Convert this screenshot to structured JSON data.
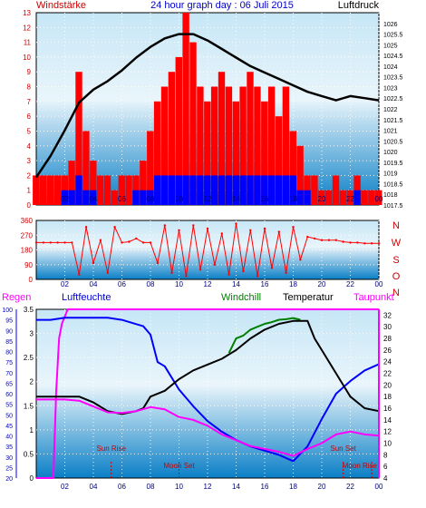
{
  "header": {
    "left_label": "Windstärke",
    "title": "24 hour graph day : 06 Juli 2015",
    "right_label": "Luftdruck"
  },
  "colors": {
    "plot_top": "#c6e6f6",
    "plot_mid": "#e9f5fb",
    "plot_bottom": "#0a7fc6",
    "wind_gust": "#ff0000",
    "wind_avg": "#0000ff",
    "pressure": "#000000",
    "direction": "#ff0000",
    "regen": "#ff00ff",
    "luftfeuchte": "#0000ff",
    "windchill": "#008000",
    "temperatur": "#000000",
    "taupunkt": "#ff00ff",
    "sun_moon": "#cc0000",
    "axis_label_red": "#cc0000",
    "axis_label_blue": "#0000cc"
  },
  "chart_data": [
    {
      "type": "bar",
      "x_ticks": [
        "02",
        "04",
        "06",
        "08",
        "10",
        "12",
        "14",
        "16",
        "18",
        "20",
        "22",
        "00"
      ],
      "left_axis": {
        "ylim": [
          0,
          13
        ],
        "ticks": [
          0,
          1,
          2,
          3,
          4,
          5,
          6,
          7,
          8,
          9,
          10,
          11,
          12,
          13
        ]
      },
      "right_axis": {
        "ylim": [
          1017.5,
          1026.5
        ],
        "ticks": [
          "1017.5",
          "1018",
          "1018.5",
          "1019",
          "1019.5",
          "1020",
          "1020.5",
          "1021",
          "1021.5",
          "1022",
          "1022.5",
          "1023",
          "1023.5",
          "1024",
          "1024.5",
          "1025",
          "1025.5",
          "1026"
        ]
      },
      "series": [
        {
          "name": "Windstärke",
          "axis": "left",
          "kind": "gust",
          "x": [
            0,
            0.5,
            1,
            1.5,
            2,
            2.5,
            3,
            3.5,
            4,
            4.5,
            5,
            5.5,
            6,
            6.5,
            7,
            7.5,
            8,
            8.5,
            9,
            9.5,
            10,
            10.5,
            11,
            11.5,
            12,
            12.5,
            13,
            13.5,
            14,
            14.5,
            15,
            15.5,
            16,
            16.5,
            17,
            17.5,
            18,
            18.5,
            19,
            19.5,
            20,
            20.5,
            21,
            21.5,
            22,
            22.5,
            23,
            23.5,
            24
          ],
          "values": [
            2,
            2,
            2,
            2,
            2,
            3,
            9,
            5,
            3,
            2,
            2,
            1,
            2,
            2,
            2,
            3,
            5,
            7,
            8,
            9,
            10,
            13,
            11,
            8,
            7,
            8,
            9,
            8,
            7,
            8,
            9,
            8,
            7,
            8,
            6,
            8,
            5,
            4,
            2,
            2,
            1,
            1,
            2,
            1,
            1,
            2,
            1,
            1,
            1
          ]
        },
        {
          "name": "Windstärke Mittel",
          "axis": "left",
          "kind": "average",
          "x": [
            0,
            0.5,
            1,
            1.5,
            2,
            2.5,
            3,
            3.5,
            4,
            4.5,
            5,
            5.5,
            6,
            6.5,
            7,
            7.5,
            8,
            8.5,
            9,
            9.5,
            10,
            10.5,
            11,
            11.5,
            12,
            12.5,
            13,
            13.5,
            14,
            14.5,
            15,
            15.5,
            16,
            16.5,
            17,
            17.5,
            18,
            18.5,
            19,
            19.5,
            20,
            20.5,
            21,
            21.5,
            22,
            22.5,
            23,
            23.5,
            24
          ],
          "values": [
            0,
            0,
            0,
            0,
            1,
            1,
            2,
            1,
            1,
            0,
            0,
            0,
            0,
            0,
            1,
            1,
            1,
            2,
            2,
            2,
            2,
            2,
            2,
            2,
            2,
            2,
            2,
            2,
            2,
            2,
            2,
            2,
            2,
            2,
            2,
            2,
            2,
            1,
            1,
            0,
            0,
            0,
            0,
            0,
            0,
            1,
            0,
            0,
            0
          ]
        },
        {
          "name": "Luftdruck",
          "axis": "right",
          "kind": "line",
          "x": [
            0,
            1,
            2,
            3,
            4,
            5,
            6,
            7,
            8,
            9,
            10,
            11,
            12,
            13,
            14,
            15,
            16,
            17,
            18,
            19,
            20,
            21,
            22,
            23,
            24
          ],
          "values": [
            1018.8,
            1019.8,
            1021.0,
            1022.3,
            1022.9,
            1023.3,
            1023.8,
            1024.4,
            1024.9,
            1025.3,
            1025.5,
            1025.5,
            1025.2,
            1024.8,
            1024.4,
            1024.0,
            1023.7,
            1023.4,
            1023.1,
            1022.8,
            1022.6,
            1022.4,
            1022.6,
            1022.5,
            1022.4
          ]
        }
      ]
    },
    {
      "type": "scatter",
      "x_ticks": [
        "02",
        "04",
        "06",
        "08",
        "10",
        "12",
        "14",
        "16",
        "18",
        "20",
        "22",
        "00"
      ],
      "left_axis": {
        "ylim": [
          0,
          360
        ],
        "ticks": [
          0,
          90,
          180,
          270,
          360
        ]
      },
      "right_axis_labels": [
        "N",
        "W",
        "S",
        "O",
        "N"
      ],
      "series": [
        {
          "name": "Windrichtung",
          "x": [
            0,
            0.5,
            1,
            1.5,
            2,
            2.5,
            3,
            3.5,
            4,
            4.5,
            5,
            5.5,
            6,
            6.5,
            7,
            7.5,
            8,
            8.5,
            9,
            9.5,
            10,
            10.5,
            11,
            11.5,
            12,
            12.5,
            13,
            13.5,
            14,
            14.5,
            15,
            15.5,
            16,
            16.5,
            17,
            17.5,
            18,
            18.5,
            19,
            19.5,
            20,
            20.5,
            21,
            21.5,
            22,
            22.5,
            23,
            23.5,
            24
          ],
          "values": [
            225,
            225,
            225,
            225,
            225,
            225,
            30,
            320,
            100,
            240,
            40,
            320,
            225,
            230,
            250,
            225,
            225,
            100,
            330,
            40,
            300,
            20,
            330,
            60,
            310,
            90,
            280,
            30,
            340,
            50,
            300,
            20,
            310,
            70,
            290,
            40,
            320,
            120,
            260,
            250,
            240,
            240,
            240,
            230,
            225,
            225,
            220,
            220,
            220
          ]
        }
      ]
    },
    {
      "type": "line",
      "legend": [
        "Regen",
        "Luftfeuchte",
        "Windchill",
        "Temperatur",
        "Taupunkt"
      ],
      "x_ticks": [
        "02",
        "04",
        "06",
        "08",
        "10",
        "12",
        "14",
        "16",
        "18",
        "20",
        "22",
        "00"
      ],
      "regen_axis": {
        "ylim": [
          0,
          3.5
        ],
        "ticks": [
          "0",
          "0.5",
          "1",
          "1.5",
          "2",
          "2.5",
          "3",
          "3.5"
        ]
      },
      "humidity_axis": {
        "ylim": [
          20,
          100
        ],
        "ticks": [
          20,
          25,
          30,
          35,
          40,
          45,
          50,
          55,
          60,
          65,
          70,
          75,
          80,
          85,
          90,
          95,
          100
        ]
      },
      "temp_axis": {
        "ylim": [
          4,
          33
        ],
        "ticks": [
          4,
          6,
          8,
          10,
          12,
          14,
          16,
          18,
          20,
          22,
          24,
          26,
          28,
          30,
          32
        ]
      },
      "annotations": [
        {
          "label": "Sun Rise",
          "x": 5.25
        },
        {
          "label": "Moon Set",
          "x": 10.0
        },
        {
          "label": "Sun Set",
          "x": 21.5
        },
        {
          "label": "Moon Rise",
          "x": 23.5
        }
      ],
      "series": [
        {
          "name": "Regen",
          "axis": "regen",
          "x": [
            0,
            0.5,
            1,
            1.2,
            1.4,
            1.6,
            1.8,
            2,
            2.2,
            2.5,
            3,
            4,
            6,
            8,
            10,
            12,
            14,
            16,
            18,
            20,
            22,
            24
          ],
          "values": [
            0,
            0,
            0,
            0,
            1.8,
            2.9,
            3.2,
            3.35,
            3.5,
            3.5,
            3.5,
            3.5,
            3.5,
            3.5,
            3.5,
            3.5,
            3.5,
            3.5,
            3.5,
            3.5,
            3.5,
            3.5
          ]
        },
        {
          "name": "Luftfeuchte",
          "axis": "humidity",
          "x": [
            0,
            1,
            2,
            3,
            4,
            5,
            6,
            7,
            7.5,
            8,
            8.5,
            9,
            10,
            11,
            12,
            13,
            14,
            15,
            16,
            17,
            18,
            19,
            20,
            21,
            22,
            23,
            24
          ],
          "values": [
            95,
            95,
            96,
            96,
            96,
            96,
            95,
            93,
            92,
            88,
            75,
            73,
            62,
            54,
            47,
            42,
            38,
            35,
            33,
            31,
            28,
            35,
            48,
            60,
            66,
            71,
            74
          ]
        },
        {
          "name": "Windchill",
          "axis": "temp",
          "x": [
            13.5,
            14,
            14.5,
            15,
            15.5,
            16,
            16.5,
            17,
            17.5,
            18,
            18.5
          ],
          "values": [
            25.5,
            28,
            28.5,
            29.5,
            30,
            30.5,
            30.8,
            31.2,
            31.3,
            31.5,
            31.2
          ]
        },
        {
          "name": "Temperatur",
          "axis": "temp",
          "x": [
            0,
            1,
            2,
            3,
            4,
            5,
            6,
            7,
            7.5,
            8,
            9,
            10,
            11,
            12,
            13,
            14,
            15,
            16,
            17,
            18,
            19,
            19.5,
            20,
            21,
            22,
            23,
            24
          ],
          "values": [
            18,
            18,
            18,
            18,
            17,
            15.5,
            15,
            15.5,
            16,
            18,
            19,
            21,
            22.5,
            23.5,
            24.5,
            26,
            28,
            29.5,
            30.5,
            31,
            31,
            28,
            26,
            22,
            18,
            16,
            15.5
          ]
        },
        {
          "name": "Taupunkt",
          "axis": "temp",
          "x": [
            0,
            1,
            2,
            3,
            4,
            5,
            6,
            7,
            8,
            9,
            10,
            11,
            12,
            13,
            14,
            15,
            16,
            17,
            18,
            19,
            20,
            21,
            22,
            23,
            24
          ],
          "values": [
            17.5,
            17.5,
            17.5,
            17.3,
            16.3,
            15.3,
            15.2,
            15.5,
            16.2,
            15.8,
            14.5,
            14,
            13,
            11.5,
            10.5,
            9.5,
            9,
            8.5,
            7.8,
            9,
            10,
            11.5,
            12,
            11.5,
            11.3
          ]
        }
      ]
    }
  ]
}
